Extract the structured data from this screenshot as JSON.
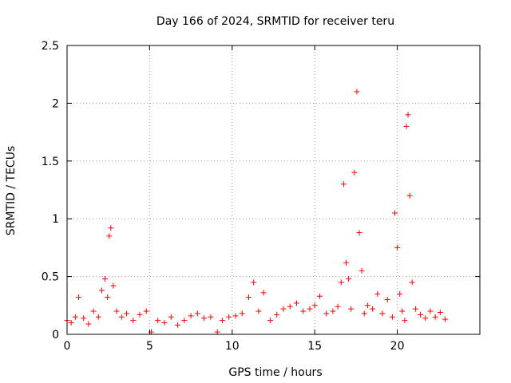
{
  "chart_data": {
    "type": "scatter",
    "title": "Day 166 of 2024, SRMTID for receiver teru",
    "xlabel": "GPS time / hours",
    "ylabel": "SRMTID / TECUs",
    "xlim": [
      0,
      25
    ],
    "ylim": [
      0,
      2.5
    ],
    "xticks": [
      0,
      5,
      10,
      15,
      20
    ],
    "yticks": [
      0,
      0.5,
      1,
      1.5,
      2,
      2.5
    ],
    "xtick_labels": [
      "0",
      "5",
      "10",
      "15",
      "20"
    ],
    "ytick_labels": [
      "0",
      "0.5",
      "1",
      "1.5",
      "2",
      "2.5"
    ],
    "grid": true,
    "marker": "plus",
    "color": "#ff0000",
    "series": [
      {
        "name": "SRMTID",
        "x": [
          0.0,
          0.25,
          0.5,
          0.7,
          1.0,
          1.3,
          1.6,
          1.9,
          2.1,
          2.3,
          2.45,
          2.55,
          2.65,
          2.8,
          3.0,
          3.3,
          3.6,
          4.0,
          4.4,
          4.8,
          5.1,
          5.5,
          5.9,
          6.3,
          6.7,
          7.1,
          7.5,
          7.9,
          8.3,
          8.7,
          9.1,
          9.4,
          9.8,
          10.2,
          10.6,
          11.0,
          11.3,
          11.6,
          11.9,
          12.3,
          12.7,
          13.1,
          13.5,
          13.9,
          14.3,
          14.7,
          15.0,
          15.3,
          15.7,
          16.1,
          16.4,
          16.6,
          16.75,
          16.9,
          17.05,
          17.2,
          17.4,
          17.55,
          17.7,
          17.85,
          18.0,
          18.2,
          18.5,
          18.8,
          19.1,
          19.4,
          19.7,
          19.85,
          20.0,
          20.15,
          20.3,
          20.45,
          20.55,
          20.65,
          20.75,
          20.9,
          21.1,
          21.4,
          21.7,
          22.0,
          22.3,
          22.6,
          22.9
        ],
        "y": [
          0.12,
          0.1,
          0.15,
          0.32,
          0.14,
          0.09,
          0.2,
          0.15,
          0.38,
          0.48,
          0.32,
          0.85,
          0.92,
          0.42,
          0.2,
          0.15,
          0.18,
          0.12,
          0.17,
          0.2,
          0.02,
          0.12,
          0.1,
          0.15,
          0.08,
          0.12,
          0.16,
          0.18,
          0.14,
          0.15,
          0.02,
          0.12,
          0.15,
          0.16,
          0.18,
          0.32,
          0.45,
          0.2,
          0.36,
          0.12,
          0.17,
          0.22,
          0.24,
          0.27,
          0.2,
          0.22,
          0.25,
          0.33,
          0.18,
          0.2,
          0.24,
          0.45,
          1.3,
          0.62,
          0.48,
          0.22,
          1.4,
          2.1,
          0.88,
          0.55,
          0.18,
          0.25,
          0.22,
          0.35,
          0.18,
          0.3,
          0.15,
          1.05,
          0.75,
          0.35,
          0.2,
          0.12,
          1.8,
          1.9,
          1.2,
          0.45,
          0.22,
          0.17,
          0.14,
          0.2,
          0.15,
          0.19,
          0.13
        ]
      }
    ]
  }
}
